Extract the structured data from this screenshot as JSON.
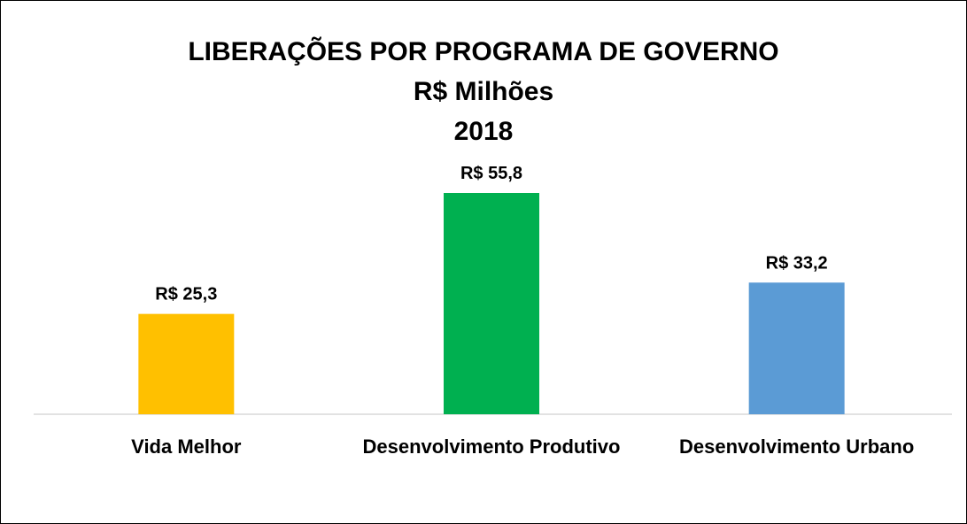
{
  "chart_data": {
    "type": "bar",
    "title": [
      "LIBERAÇÕES POR PROGRAMA DE GOVERNO",
      "R$ Milhões",
      "2018"
    ],
    "categories": [
      "Vida Melhor",
      "Desenvolvimento Produtivo",
      "Desenvolvimento Urbano"
    ],
    "values": [
      25.3,
      55.8,
      33.2
    ],
    "value_labels": [
      "R$ 25,3",
      "R$ 55,8",
      "R$ 33,2"
    ],
    "colors": [
      "#FFC000",
      "#00B050",
      "#5B9BD5"
    ]
  }
}
